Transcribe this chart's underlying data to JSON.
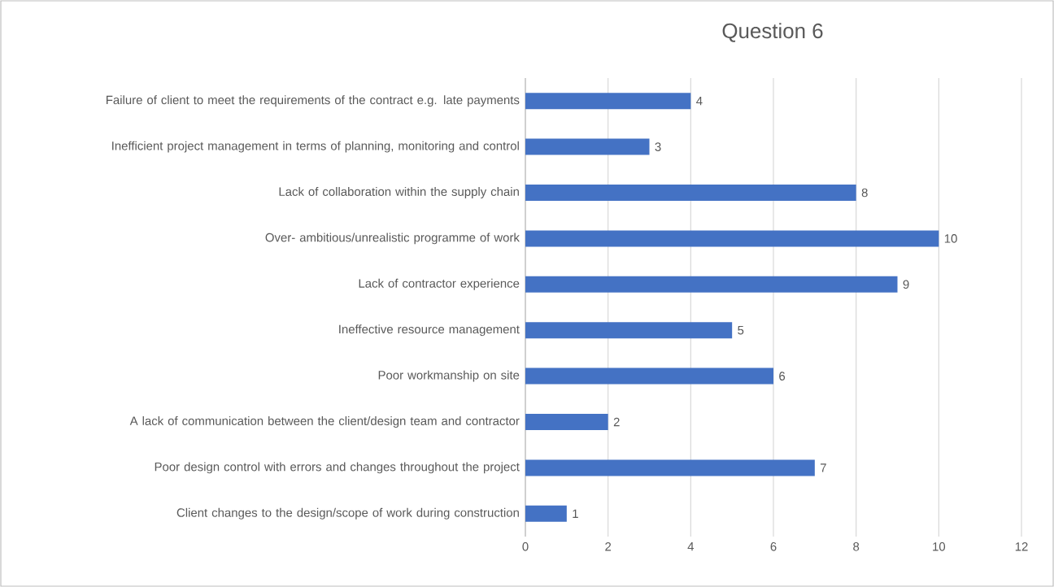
{
  "chart_data": {
    "type": "bar",
    "orientation": "horizontal",
    "title": "Question 6",
    "categories": [
      "Failure of client to meet the requirements of the contract e.g. late payments",
      "Inefficient project management in terms of planning, monitoring and control",
      "Lack of collaboration within the supply chain",
      "Over- ambitious/unrealistic programme of work",
      "Lack of contractor experience",
      "Ineffective resource management",
      "Poor workmanship on site",
      "A lack of communication between the client/design team and contractor",
      "Poor design control with errors and changes throughout the project",
      "Client changes to the design/scope of work during construction"
    ],
    "values": [
      4,
      3,
      8,
      10,
      9,
      5,
      6,
      2,
      7,
      1
    ],
    "color": "#4472c4",
    "xlim": [
      0,
      12
    ],
    "xticks": [
      0,
      2,
      4,
      6,
      8,
      10,
      12
    ],
    "grid": "x",
    "data_labels": true
  }
}
